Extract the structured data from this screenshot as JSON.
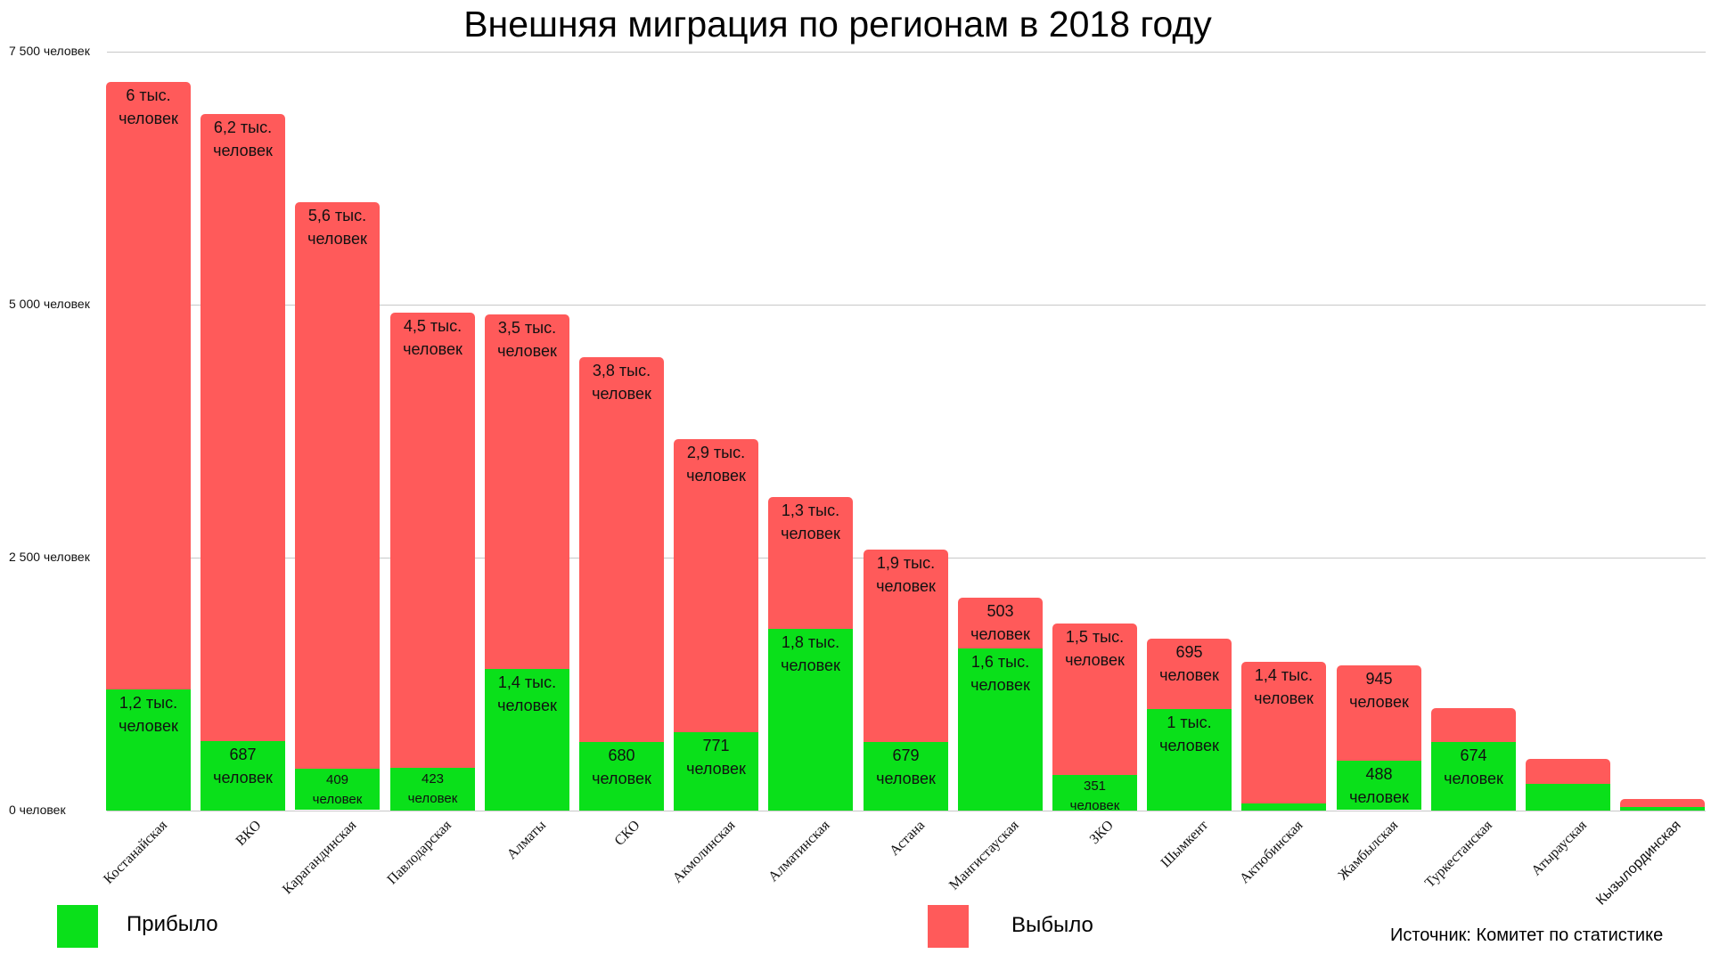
{
  "chart_data": {
    "type": "bar",
    "stacked": true,
    "title": "Внешняя миграция по регионам в 2018 году",
    "xlabel": "",
    "ylabel": "",
    "ylim": [
      0,
      7500
    ],
    "grid": true,
    "legend_position": "bottom",
    "yticks": [
      {
        "value": 0,
        "label": "0 человек"
      },
      {
        "value": 2500,
        "label": "2 500 человек"
      },
      {
        "value": 5000,
        "label": "5 000 человек"
      },
      {
        "value": 7500,
        "label": "7 500 человек"
      }
    ],
    "categories": [
      "Костанайская",
      "ВКО",
      "Карагандинская",
      "Павлодарская",
      "Алматы",
      "СКО",
      "Акмолинская",
      "Алматинская",
      "Астана",
      "Мангистауская",
      "ЗКО",
      "Шымкент",
      "Актюбинская",
      "Жамбылская",
      "Туркестанская",
      "Атырауская",
      "Кызылординская"
    ],
    "series": [
      {
        "name": "Прибыло",
        "color": "#0ae01a",
        "values": [
          1200,
          687,
          409,
          423,
          1400,
          680,
          771,
          1800,
          679,
          1600,
          351,
          1000,
          70,
          488,
          674,
          265,
          35
        ],
        "labels": [
          [
            "1,2 тыс.",
            "человек"
          ],
          [
            "687",
            "человек"
          ],
          [
            "409",
            "человек"
          ],
          [
            "423",
            "человек"
          ],
          [
            "1,4 тыс.",
            "человек"
          ],
          [
            "680",
            "человек"
          ],
          [
            "771",
            "человек"
          ],
          [
            "1,8 тыс.",
            "человек"
          ],
          [
            "679",
            "человек"
          ],
          [
            "1,6 тыс.",
            "человек"
          ],
          [
            "351",
            "человек"
          ],
          [
            "1 тыс.",
            "человек"
          ],
          null,
          [
            "488",
            "человек"
          ],
          [
            "674",
            "человек"
          ],
          null,
          null
        ]
      },
      {
        "name": "Выбыло",
        "color": "#ff5a5a",
        "values": [
          6000,
          6200,
          5600,
          4500,
          3500,
          3800,
          2900,
          1300,
          1900,
          503,
          1500,
          695,
          1400,
          945,
          335,
          245,
          80
        ],
        "labels": [
          [
            "6 тыс.",
            "человек"
          ],
          [
            "6,2 тыс.",
            "человек"
          ],
          [
            "5,6 тыс.",
            "человек"
          ],
          [
            "4,5 тыс.",
            "человек"
          ],
          [
            "3,5 тыс.",
            "человек"
          ],
          [
            "3,8 тыс.",
            "человек"
          ],
          [
            "2,9 тыс.",
            "человек"
          ],
          [
            "1,3 тыс.",
            "человек"
          ],
          [
            "1,9 тыс.",
            "человек"
          ],
          [
            "503",
            "человек"
          ],
          [
            "1,5 тыс.",
            "человек"
          ],
          [
            "695",
            "человек"
          ],
          [
            "1,4 тыс.",
            "человек"
          ],
          [
            "945",
            "человек"
          ],
          null,
          null,
          null
        ]
      }
    ],
    "annotations": [
      "Источник: Комитет по статистике"
    ]
  },
  "legend": {
    "arrived": {
      "label": "Прибыло",
      "color": "#0ae01a"
    },
    "departed": {
      "label": "Выбыло",
      "color": "#ff5a5a"
    }
  },
  "source": "Источник: Комитет по статистике"
}
